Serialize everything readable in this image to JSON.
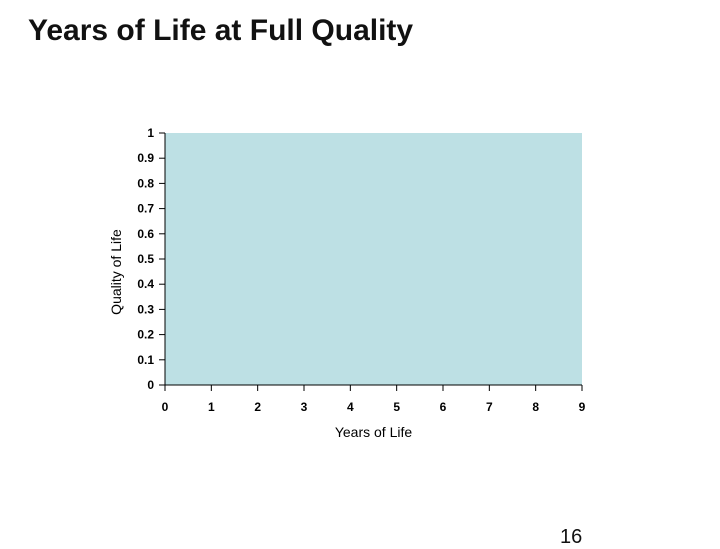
{
  "slide": {
    "title": "Years of Life at Full Quality",
    "page_number": "16"
  },
  "chart_data": {
    "type": "area",
    "title": "",
    "xlabel": "Years of Life",
    "ylabel": "Quality of Life",
    "xlim": [
      0,
      9
    ],
    "ylim": [
      0,
      1
    ],
    "x_ticks": [
      "0",
      "1",
      "2",
      "3",
      "4",
      "5",
      "6",
      "7",
      "8",
      "9"
    ],
    "y_ticks": [
      "0",
      "0.1",
      "0.2",
      "0.3",
      "0.4",
      "0.5",
      "0.6",
      "0.7",
      "0.8",
      "0.9",
      "1"
    ],
    "series": [
      {
        "x": [
          0,
          9
        ],
        "values": [
          1,
          1
        ]
      }
    ],
    "colors": {
      "fill": "#bde0e4",
      "axis": "#000000"
    },
    "grid": false,
    "legend": "none"
  }
}
